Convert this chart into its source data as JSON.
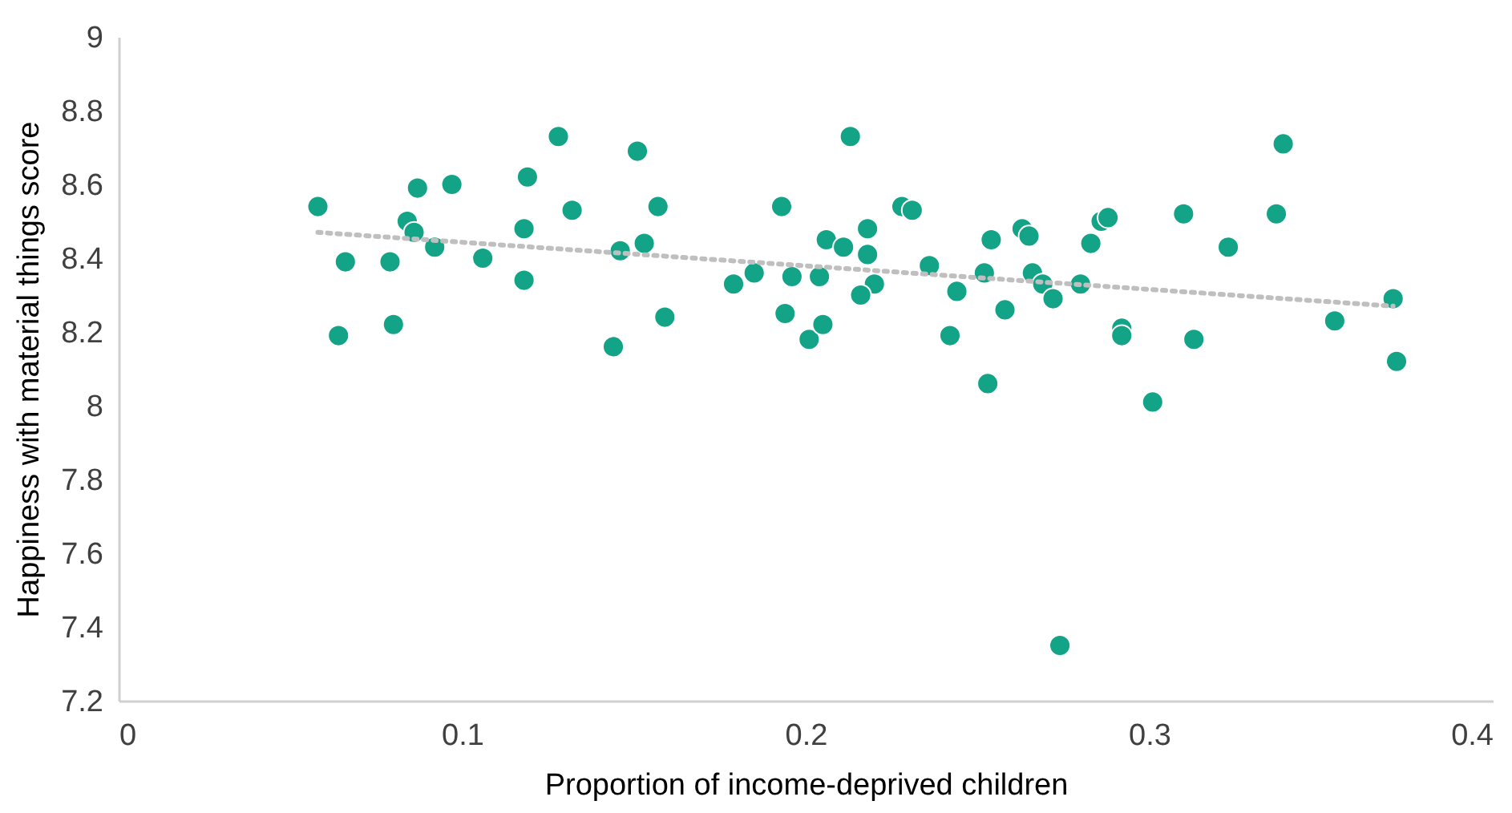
{
  "chart_data": {
    "type": "scatter",
    "xlabel": "Proportion of income-deprived children",
    "ylabel": "Happiness with material things score",
    "xlim": [
      0,
      0.4
    ],
    "xticks": [
      0,
      0.1,
      0.2,
      0.3,
      0.4
    ],
    "ylim": [
      7.2,
      9
    ],
    "yticks": [
      7.2,
      7.4,
      7.6,
      7.8,
      8,
      8.2,
      8.4,
      8.6,
      8.8,
      9
    ],
    "grid": false,
    "series": [
      {
        "marker": "circle",
        "color": "#13a386",
        "x": [
          0.058,
          0.066,
          0.064,
          0.079,
          0.08,
          0.087,
          0.084,
          0.086,
          0.092,
          0.097,
          0.106,
          0.118,
          0.118,
          0.119,
          0.128,
          0.132,
          0.151,
          0.146,
          0.153,
          0.157,
          0.144,
          0.159,
          0.179,
          0.185,
          0.193,
          0.194,
          0.196,
          0.204,
          0.201,
          0.205,
          0.206,
          0.211,
          0.213,
          0.218,
          0.218,
          0.22,
          0.216,
          0.228,
          0.231,
          0.236,
          0.244,
          0.242,
          0.254,
          0.252,
          0.253,
          0.258,
          0.263,
          0.265,
          0.266,
          0.269,
          0.272,
          0.274,
          0.28,
          0.283,
          0.286,
          0.288,
          0.292,
          0.292,
          0.301,
          0.31,
          0.313,
          0.323,
          0.337,
          0.339,
          0.354,
          0.371,
          0.372
        ],
        "values": [
          8.54,
          8.39,
          8.19,
          8.39,
          8.22,
          8.59,
          8.5,
          8.47,
          8.43,
          8.6,
          8.4,
          8.34,
          8.48,
          8.62,
          8.73,
          8.53,
          8.69,
          8.42,
          8.44,
          8.54,
          8.16,
          8.24,
          8.33,
          8.36,
          8.54,
          8.25,
          8.35,
          8.35,
          8.18,
          8.22,
          8.45,
          8.43,
          8.73,
          8.48,
          8.41,
          8.33,
          8.3,
          8.54,
          8.53,
          8.38,
          8.31,
          8.19,
          8.45,
          8.36,
          8.06,
          8.26,
          8.48,
          8.46,
          8.36,
          8.33,
          8.29,
          7.35,
          8.33,
          8.44,
          8.5,
          8.51,
          8.21,
          8.19,
          8.01,
          8.52,
          8.18,
          8.43,
          8.52,
          8.71,
          8.23,
          8.29,
          8.12
        ]
      },
      {
        "type": "line",
        "color": "#bfbfbf",
        "line_style": "dotted",
        "x": [
          0.058,
          0.371
        ],
        "values": [
          8.47,
          8.27
        ]
      }
    ]
  }
}
